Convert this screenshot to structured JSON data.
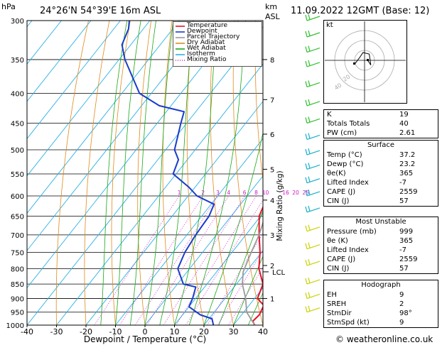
{
  "header": {
    "pressure_unit": "hPa",
    "location": "24°26'N 54°39'E 16m ASL",
    "km_label_1": "km",
    "km_label_2": "ASL",
    "datetime": "11.09.2022 12GMT (Base: 12)"
  },
  "legend": [
    {
      "label": "Temperature",
      "color": "#e8102a",
      "dash": "none"
    },
    {
      "label": "Dewpoint",
      "color": "#1a3ccc",
      "dash": "none"
    },
    {
      "label": "Parcel Trajectory",
      "color": "#9a9a9a",
      "dash": "none"
    },
    {
      "label": "Dry Adiabat",
      "color": "#e08a1a",
      "dash": "none"
    },
    {
      "label": "Wet Adiabat",
      "color": "#18a818",
      "dash": "none"
    },
    {
      "label": "Isotherm",
      "color": "#2ab0e8",
      "dash": "none"
    },
    {
      "label": "Mixing Ratio",
      "color": "#d018c8",
      "dash": "dot"
    }
  ],
  "chart_data": {
    "type": "line",
    "title": "",
    "xlabel": "Dewpoint / Temperature (°C)",
    "ylabel": "hPa",
    "right_label": "Mixing Ratio (g/kg)",
    "xlim": [
      -40,
      40
    ],
    "x_ticks": [
      -40,
      -30,
      -20,
      -10,
      0,
      10,
      20,
      30,
      40
    ],
    "pressure_levels": [
      300,
      350,
      400,
      450,
      500,
      550,
      600,
      650,
      700,
      750,
      800,
      850,
      900,
      950,
      1000
    ],
    "km_ticks": [
      {
        "km": "8",
        "p": 350
      },
      {
        "km": "7",
        "p": 410
      },
      {
        "km": "6",
        "p": 470
      },
      {
        "km": "5",
        "p": 540
      },
      {
        "km": "4",
        "p": 610
      },
      {
        "km": "3",
        "p": 700
      },
      {
        "km": "2",
        "p": 790
      },
      {
        "km": "1",
        "p": 900
      }
    ],
    "lcl": {
      "label": "LCL",
      "p": 810
    },
    "mixing_ratio_labels": [
      "1",
      "2",
      "3",
      "4",
      "6",
      "8",
      "10",
      "16",
      "20",
      "25"
    ],
    "mixing_ratio_values": [
      1,
      2,
      3,
      4,
      6,
      8,
      10,
      16,
      20,
      25
    ],
    "series": [
      {
        "name": "Temperature",
        "color": "#e8102a",
        "points": [
          [
            37.2,
            1000
          ],
          [
            35.5,
            985
          ],
          [
            36,
            960
          ],
          [
            35,
            925
          ],
          [
            31,
            900
          ],
          [
            29,
            850
          ],
          [
            23.5,
            800
          ],
          [
            19.5,
            750
          ],
          [
            14.5,
            700
          ],
          [
            9.5,
            650
          ],
          [
            7,
            600
          ],
          [
            5.5,
            580
          ],
          [
            4.8,
            570
          ],
          [
            4,
            550
          ],
          [
            -1.2,
            500
          ],
          [
            -7,
            450
          ],
          [
            -11,
            430
          ],
          [
            -15.5,
            400
          ],
          [
            -24,
            350
          ],
          [
            -31,
            320
          ]
        ]
      },
      {
        "name": "Dewpoint",
        "color": "#1a3ccc",
        "points": [
          [
            23.2,
            1000
          ],
          [
            21,
            975
          ],
          [
            16,
            960
          ],
          [
            10,
            930
          ],
          [
            9,
            900
          ],
          [
            7,
            860
          ],
          [
            2,
            850
          ],
          [
            -4,
            800
          ],
          [
            -6,
            750
          ],
          [
            -7,
            700
          ],
          [
            -7.5,
            650
          ],
          [
            -9,
            620
          ],
          [
            -17,
            600
          ],
          [
            -22,
            580
          ],
          [
            -31,
            550
          ],
          [
            -33,
            520
          ],
          [
            -37,
            500
          ],
          [
            -42,
            450
          ],
          [
            -44,
            430
          ],
          [
            -54,
            420
          ],
          [
            -64,
            400
          ],
          [
            -78,
            350
          ],
          [
            -83,
            330
          ],
          [
            -85,
            310
          ],
          [
            -87,
            300
          ]
        ]
      },
      {
        "name": "Parcel Trajectory",
        "color": "#9a9a9a",
        "points": [
          [
            37.2,
            1000
          ],
          [
            31,
            950
          ],
          [
            27,
            900
          ],
          [
            22,
            850
          ],
          [
            19,
            810
          ],
          [
            16.5,
            750
          ],
          [
            14.5,
            700
          ],
          [
            11.5,
            650
          ],
          [
            8.5,
            600
          ],
          [
            5,
            550
          ],
          [
            1,
            500
          ],
          [
            -4.5,
            450
          ],
          [
            -11,
            400
          ],
          [
            -19,
            350
          ],
          [
            -28,
            300
          ]
        ]
      }
    ]
  },
  "winds": {
    "color_low": "#c8d400",
    "color_mid": "#30c030",
    "color_high": "#18b0c8",
    "levels": [
      300,
      320,
      340,
      360,
      390,
      420,
      450,
      480,
      510,
      540,
      570,
      600,
      640,
      690,
      740,
      790,
      850,
      900,
      950
    ]
  },
  "hodograph": {
    "label": "kt",
    "ring_labels": [
      "40",
      "20"
    ],
    "points": [
      [
        2,
        0
      ],
      [
        4,
        -3
      ],
      [
        3,
        4
      ],
      [
        -1,
        5
      ],
      [
        -3,
        2
      ],
      [
        -6,
        -2
      ]
    ]
  },
  "indices": [
    {
      "k": "K",
      "v": "19"
    },
    {
      "k": "Totals Totals",
      "v": "40"
    },
    {
      "k": "PW (cm)",
      "v": "2.61"
    }
  ],
  "surface": {
    "title": "Surface",
    "rows": [
      {
        "k": "Temp (°C)",
        "v": "37.2"
      },
      {
        "k": "Dewp (°C)",
        "v": "23.2"
      },
      {
        "k": "θe(K)",
        "v": "365"
      },
      {
        "k": "Lifted Index",
        "v": "-7"
      },
      {
        "k": "CAPE (J)",
        "v": "2559"
      },
      {
        "k": "CIN (J)",
        "v": "57"
      }
    ]
  },
  "most_unstable": {
    "title": "Most Unstable",
    "rows": [
      {
        "k": "Pressure (mb)",
        "v": "999"
      },
      {
        "k": "θe (K)",
        "v": "365"
      },
      {
        "k": "Lifted Index",
        "v": "-7"
      },
      {
        "k": "CAPE (J)",
        "v": "2559"
      },
      {
        "k": "CIN (J)",
        "v": "57"
      }
    ]
  },
  "hodograph_table": {
    "title": "Hodograph",
    "rows": [
      {
        "k": "EH",
        "v": "9"
      },
      {
        "k": "SREH",
        "v": "2"
      },
      {
        "k": "StmDir",
        "v": "98°"
      },
      {
        "k": "StmSpd (kt)",
        "v": "9"
      }
    ]
  },
  "credit": "© weatheronline.co.uk"
}
